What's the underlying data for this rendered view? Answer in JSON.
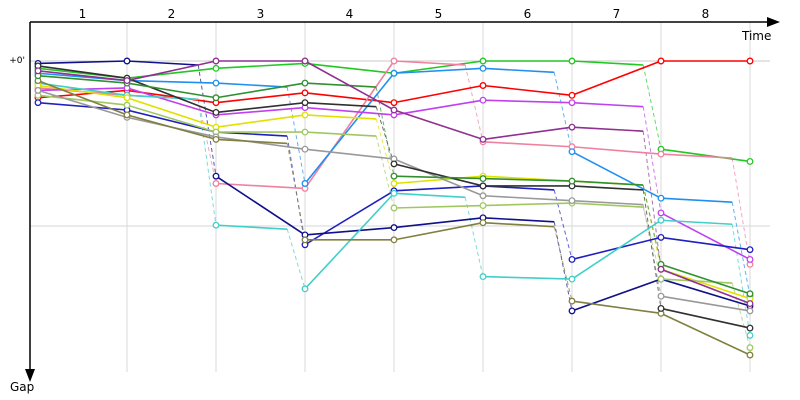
{
  "chart_data": {
    "type": "line",
    "title": "",
    "xlabel": "Time",
    "ylabel": "Gap",
    "y_offset_label": "+0'",
    "lap_labels": [
      "1",
      "2",
      "3",
      "4",
      "5",
      "6",
      "7",
      "8"
    ],
    "grid": true,
    "marker_style": "open-circle",
    "y_direction": "increasing-downward",
    "series": [
      {
        "color": "#ff0000",
        "points": [
          [
            0.0,
            0.15
          ],
          [
            1.0,
            0.12
          ],
          [
            2.0,
            0.17
          ],
          [
            3.0,
            0.13
          ],
          [
            4.0,
            0.17
          ],
          [
            5.0,
            0.1
          ],
          [
            6.0,
            0.14
          ],
          [
            7.0,
            0.0
          ],
          [
            8.0,
            0.0
          ]
        ]
      },
      {
        "color": "#22c822",
        "points": [
          [
            0.0,
            0.03
          ],
          [
            1.0,
            0.07
          ],
          [
            2.0,
            0.03
          ],
          [
            3.0,
            0.01
          ],
          [
            4.0,
            0.05
          ],
          [
            5.0,
            0.0
          ],
          [
            6.0,
            0.0
          ],
          [
            7.0,
            0.36
          ],
          [
            8.0,
            0.41
          ]
        ]
      },
      {
        "color": "#f080a0",
        "points": [
          [
            0.0,
            0.11
          ],
          [
            1.0,
            0.14
          ],
          [
            2.0,
            0.5
          ],
          [
            3.0,
            0.52
          ],
          [
            4.0,
            0.0
          ],
          [
            5.0,
            0.33
          ],
          [
            6.0,
            0.35
          ],
          [
            7.0,
            0.38
          ],
          [
            8.0,
            0.83
          ]
        ]
      },
      {
        "color": "#2090f0",
        "points": [
          [
            0.0,
            0.05
          ],
          [
            1.0,
            0.08
          ],
          [
            2.0,
            0.09
          ],
          [
            3.0,
            0.5
          ],
          [
            4.0,
            0.05
          ],
          [
            5.0,
            0.03
          ],
          [
            6.0,
            0.37
          ],
          [
            7.0,
            0.56
          ],
          [
            8.0,
            0.96
          ]
        ]
      },
      {
        "color": "#c040f0",
        "points": [
          [
            0.0,
            0.12
          ],
          [
            1.0,
            0.11
          ],
          [
            2.0,
            0.22
          ],
          [
            3.0,
            0.19
          ],
          [
            4.0,
            0.22
          ],
          [
            5.0,
            0.16
          ],
          [
            6.0,
            0.17
          ],
          [
            7.0,
            0.62
          ],
          [
            8.0,
            0.81
          ]
        ]
      },
      {
        "color": "#2020c0",
        "points": [
          [
            0.0,
            0.17
          ],
          [
            1.0,
            0.2
          ],
          [
            2.0,
            0.29
          ],
          [
            3.0,
            0.75
          ],
          [
            4.0,
            0.53
          ],
          [
            5.0,
            0.51
          ],
          [
            6.0,
            0.81
          ],
          [
            7.0,
            0.72
          ],
          [
            8.0,
            0.77
          ]
        ]
      },
      {
        "color": "#10108a",
        "points": [
          [
            0.0,
            0.01
          ],
          [
            1.0,
            0.0
          ],
          [
            2.0,
            0.47
          ],
          [
            3.0,
            0.71
          ],
          [
            4.0,
            0.68
          ],
          [
            5.0,
            0.64
          ],
          [
            6.0,
            1.02
          ],
          [
            7.0,
            0.89
          ],
          [
            8.0,
            1.0
          ]
        ]
      },
      {
        "color": "#40d0c8",
        "points": [
          [
            0.0,
            0.09
          ],
          [
            1.0,
            0.14
          ],
          [
            2.0,
            0.67
          ],
          [
            3.0,
            0.93
          ],
          [
            4.0,
            0.54
          ],
          [
            5.0,
            0.88
          ],
          [
            6.0,
            0.89
          ],
          [
            7.0,
            0.65
          ],
          [
            8.0,
            1.12
          ]
        ]
      },
      {
        "color": "#e0e000",
        "points": [
          [
            0.0,
            0.1
          ],
          [
            1.0,
            0.15
          ],
          [
            2.0,
            0.27
          ],
          [
            3.0,
            0.22
          ],
          [
            4.0,
            0.5
          ],
          [
            5.0,
            0.47
          ],
          [
            6.0,
            0.49
          ],
          [
            7.0,
            0.85
          ],
          [
            8.0,
            0.97
          ]
        ]
      },
      {
        "color": "#a0c860",
        "points": [
          [
            0.0,
            0.14
          ],
          [
            1.0,
            0.18
          ],
          [
            2.0,
            0.29
          ],
          [
            3.0,
            0.29
          ],
          [
            4.0,
            0.6
          ],
          [
            5.0,
            0.59
          ],
          [
            6.0,
            0.58
          ],
          [
            7.0,
            0.89
          ],
          [
            8.0,
            1.17
          ]
        ]
      },
      {
        "color": "#999999",
        "points": [
          [
            0.0,
            0.12
          ],
          [
            1.0,
            0.23
          ],
          [
            2.0,
            0.31
          ],
          [
            3.0,
            0.36
          ],
          [
            4.0,
            0.4
          ],
          [
            5.0,
            0.55
          ],
          [
            6.0,
            0.57
          ],
          [
            7.0,
            0.96
          ],
          [
            8.0,
            1.02
          ]
        ]
      },
      {
        "color": "#808040",
        "points": [
          [
            0.0,
            0.08
          ],
          [
            1.0,
            0.22
          ],
          [
            2.0,
            0.32
          ],
          [
            3.0,
            0.73
          ],
          [
            4.0,
            0.73
          ],
          [
            5.0,
            0.66
          ],
          [
            6.0,
            0.98
          ],
          [
            7.0,
            1.03
          ],
          [
            8.0,
            1.2
          ]
        ]
      },
      {
        "color": "#303030",
        "points": [
          [
            0.0,
            0.02
          ],
          [
            1.0,
            0.07
          ],
          [
            2.0,
            0.21
          ],
          [
            3.0,
            0.17
          ],
          [
            4.0,
            0.42
          ],
          [
            5.0,
            0.51
          ],
          [
            6.0,
            0.51
          ],
          [
            7.0,
            1.01
          ],
          [
            8.0,
            1.09
          ]
        ]
      },
      {
        "color": "#309030",
        "points": [
          [
            0.0,
            0.06
          ],
          [
            1.0,
            0.09
          ],
          [
            2.0,
            0.15
          ],
          [
            3.0,
            0.09
          ],
          [
            4.0,
            0.47
          ],
          [
            5.0,
            0.48
          ],
          [
            6.0,
            0.49
          ],
          [
            7.0,
            0.83
          ],
          [
            8.0,
            0.95
          ]
        ]
      },
      {
        "color": "#903090",
        "points": [
          [
            0.0,
            0.04
          ],
          [
            1.0,
            0.08
          ],
          [
            2.0,
            0.0
          ],
          [
            3.0,
            0.0
          ],
          [
            4.0,
            0.2
          ],
          [
            5.0,
            0.32
          ],
          [
            6.0,
            0.27
          ],
          [
            7.0,
            0.85
          ],
          [
            8.0,
            0.99
          ]
        ]
      }
    ]
  }
}
